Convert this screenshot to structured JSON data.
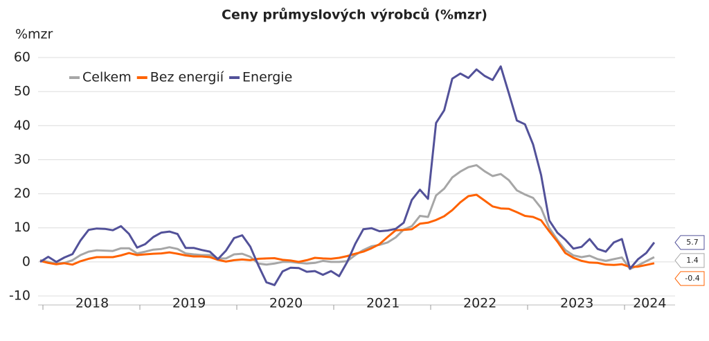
{
  "chart_data": {
    "type": "line",
    "title": "Ceny průmyslových výrobců (%mzr)",
    "y_label": "%mzr",
    "categories": [
      null,
      null,
      null,
      null,
      null,
      null,
      "2018",
      null,
      null,
      null,
      null,
      null,
      null,
      null,
      null,
      null,
      null,
      null,
      "2019",
      null,
      null,
      null,
      null,
      null,
      null,
      null,
      null,
      null,
      null,
      null,
      "2020",
      null,
      null,
      null,
      null,
      null,
      null,
      null,
      null,
      null,
      null,
      null,
      "2021",
      null,
      null,
      null,
      null,
      null,
      null,
      null,
      null,
      null,
      null,
      null,
      "2022",
      null,
      null,
      null,
      null,
      null,
      null,
      null,
      null,
      null,
      null,
      null,
      "2023",
      null,
      null,
      null,
      null,
      null,
      null,
      null,
      null,
      "2024",
      null
    ],
    "series": [
      {
        "name": "Celkem",
        "color": "#a6a6a6",
        "values": [
          0.5,
          0,
          -0.5,
          -0.3,
          0.5,
          2.0,
          3.0,
          3.4,
          3.3,
          3.2,
          4.0,
          4.0,
          2.5,
          3.0,
          3.6,
          3.8,
          4.3,
          3.8,
          2.5,
          2.2,
          2.0,
          2.0,
          1.0,
          1.0,
          2.2,
          2.4,
          1.5,
          -0.5,
          -0.8,
          -0.5,
          0,
          0,
          -0.3,
          -0.5,
          -0.3,
          0.3,
          0,
          0,
          0.2,
          2.0,
          3.5,
          4.6,
          5.0,
          5.7,
          7.2,
          9.5,
          10.5,
          13.5,
          13.2,
          19.5,
          21.5,
          24.8,
          26.5,
          27.8,
          28.4,
          26.6,
          25.2,
          25.8,
          24.0,
          21.0,
          19.8,
          18.8,
          15.8,
          10.0,
          6.5,
          3.5,
          1.9,
          1.4,
          1.8,
          0.8,
          0.3,
          0.8,
          1.3,
          -2.1,
          -1.0,
          0.2,
          1.4
        ]
      },
      {
        "name": "Bez energií",
        "color": "#ff6200",
        "values": [
          0.3,
          -0.3,
          -0.7,
          -0.4,
          -0.8,
          0.2,
          0.9,
          1.4,
          1.4,
          1.4,
          1.9,
          2.6,
          2.0,
          2.2,
          2.4,
          2.5,
          2.8,
          2.4,
          1.9,
          1.6,
          1.6,
          1.4,
          0.6,
          0.1,
          0.5,
          0.7,
          0.5,
          0.9,
          1.0,
          1.1,
          0.6,
          0.4,
          0,
          0.5,
          1.2,
          1.0,
          0.9,
          1.2,
          1.7,
          2.4,
          3.0,
          4.0,
          5.2,
          7.3,
          9.3,
          9.4,
          9.6,
          11.2,
          11.5,
          12.3,
          13.4,
          15.2,
          17.5,
          19.3,
          19.7,
          18.0,
          16.3,
          15.7,
          15.6,
          14.6,
          13.5,
          13.2,
          12.2,
          9.0,
          6.0,
          2.6,
          1.2,
          0.3,
          -0.2,
          -0.3,
          -0.8,
          -0.9,
          -0.7,
          -1.5,
          -1.4,
          -0.9,
          -0.4
        ]
      },
      {
        "name": "Energie",
        "color": "#525199",
        "values": [
          0,
          1.5,
          0,
          1.3,
          2.3,
          6.3,
          9.4,
          9.8,
          9.7,
          9.3,
          10.5,
          8.2,
          4.2,
          5.2,
          7.3,
          8.6,
          8.9,
          8.2,
          4.1,
          4.1,
          3.5,
          3.0,
          0.8,
          3.3,
          7.0,
          7.8,
          4.5,
          -1.0,
          -6.0,
          -6.8,
          -2.8,
          -1.7,
          -1.8,
          -2.9,
          -2.7,
          -3.8,
          -2.7,
          -4.2,
          0,
          5.3,
          9.6,
          9.9,
          9.0,
          9.2,
          9.7,
          11.5,
          18.2,
          21.2,
          18.5,
          40.8,
          44.5,
          53.8,
          55.3,
          54.0,
          56.5,
          54.6,
          53.4,
          57.4,
          49.5,
          41.5,
          40.4,
          34.5,
          25.5,
          12.2,
          8.6,
          6.5,
          3.9,
          4.4,
          6.7,
          3.8,
          3.0,
          5.7,
          6.7,
          -2.0,
          0.8,
          2.6,
          5.7
        ]
      }
    ],
    "ylim": [
      -10,
      60
    ],
    "yticks": [
      -10,
      0,
      10,
      20,
      30,
      40,
      50,
      60
    ],
    "grid": true,
    "legend": "upper left"
  }
}
